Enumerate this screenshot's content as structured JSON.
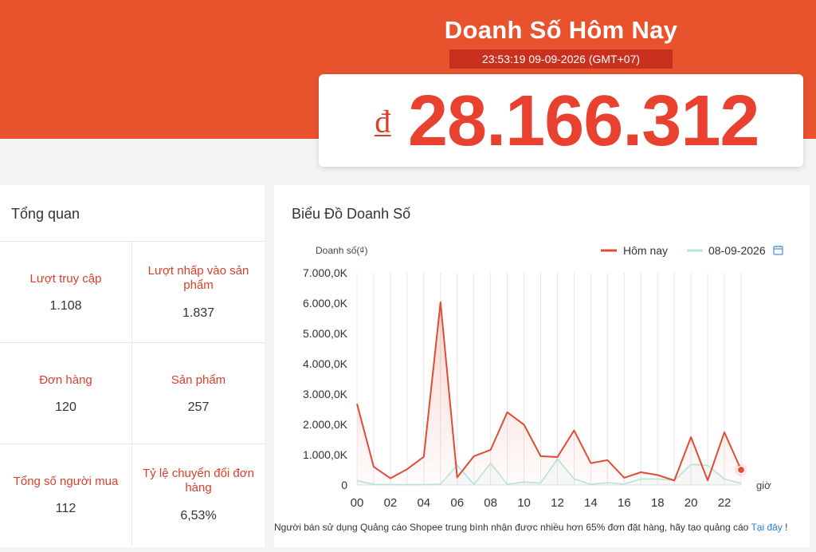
{
  "header": {
    "title": "Doanh Số Hôm Nay",
    "timestamp": "23:53:19 09-09-2026 (GMT+07)",
    "currency_symbol": "₫",
    "revenue": "28.166.312",
    "accent_color": "#e8532d"
  },
  "overview": {
    "title": "Tổng quan",
    "metrics": [
      {
        "label": "Lượt truy cập",
        "value": "1.108"
      },
      {
        "label": "Lượt nhấp vào sản phẩm",
        "value": "1.837"
      },
      {
        "label": "Đơn hàng",
        "value": "120"
      },
      {
        "label": "Sản phẩm",
        "value": "257"
      },
      {
        "label": "Tổng số người mua",
        "value": "112"
      },
      {
        "label": "Tỷ lệ chuyển đổi đơn hàng",
        "value": "6,53%"
      }
    ]
  },
  "chart": {
    "title": "Biểu Đồ Doanh Số",
    "footer_text": "Người bán sử dụng Quảng cáo Shopee trung bình nhận được nhiều hơn 65% đơn đặt hàng, hãy tạo quảng cáo ",
    "footer_link": "Tại đây",
    "footer_end": " !",
    "calendar_icon": "calendar-icon"
  },
  "chart_data": {
    "type": "line",
    "ylabel": "Doanh số(₫)",
    "xlabel": "giờ",
    "ylim": [
      0,
      7000
    ],
    "yticks": [
      "0",
      "1.000,0K",
      "2.000,0K",
      "3.000,0K",
      "4.000,0K",
      "5.000,0K",
      "6.000,0K",
      "7.000,0K"
    ],
    "xticks": [
      "00",
      "02",
      "04",
      "06",
      "08",
      "10",
      "12",
      "14",
      "16",
      "18",
      "20",
      "22"
    ],
    "x": [
      0,
      1,
      2,
      3,
      4,
      5,
      6,
      7,
      8,
      9,
      10,
      11,
      12,
      13,
      14,
      15,
      16,
      17,
      18,
      19,
      20,
      21,
      22,
      23
    ],
    "grid": "vertical",
    "legend_position": "top-right",
    "series": [
      {
        "name": "Hôm nay",
        "color": "#e04b33",
        "values": [
          2680,
          600,
          220,
          520,
          930,
          6030,
          250,
          950,
          1160,
          2400,
          1990,
          950,
          920,
          1800,
          720,
          820,
          240,
          420,
          330,
          150,
          1580,
          150,
          1740,
          500
        ]
      },
      {
        "name": "08-09-2026",
        "color": "#b7e6dc",
        "values": [
          150,
          20,
          10,
          10,
          10,
          30,
          650,
          20,
          720,
          20,
          100,
          60,
          860,
          200,
          20,
          80,
          30,
          200,
          200,
          150,
          680,
          650,
          200,
          50
        ]
      }
    ]
  }
}
